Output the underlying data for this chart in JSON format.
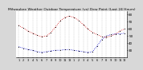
{
  "title": "Milwaukee Weather Outdoor Temperature (vs) Dew Point (Last 24 Hours)",
  "title_fontsize": 3.2,
  "background_color": "#d8d8d8",
  "plot_bg_color": "#ffffff",
  "red_line": [
    65,
    61,
    57,
    54,
    51,
    49,
    50,
    55,
    63,
    71,
    76,
    78,
    76,
    72,
    66,
    60,
    55,
    52,
    49,
    48,
    50,
    53,
    57,
    60
  ],
  "blue_line": [
    35,
    33,
    31,
    30,
    28,
    27,
    28,
    29,
    30,
    30,
    31,
    31,
    30,
    29,
    28,
    27,
    28,
    36,
    45,
    50,
    52,
    53,
    53,
    54
  ],
  "red_color": "#cc0000",
  "blue_color": "#0000cc",
  "ylim": [
    20,
    85
  ],
  "yticks": [
    30,
    40,
    50,
    60,
    70,
    80
  ],
  "ytick_labels": [
    "30",
    "40",
    "50",
    "60",
    "70",
    "80"
  ],
  "ylabel_fontsize": 3.0,
  "xlabel_fontsize": 2.5,
  "n_points": 24,
  "grid_color": "#aaaaaa",
  "line_width": 0.6,
  "marker_size": 0.9,
  "dot_color": "#000000",
  "dot_size": 0.8,
  "x_labels": [
    "1",
    "2",
    "3",
    "4",
    "5",
    "6",
    "7",
    "8",
    "9",
    "10",
    "11",
    "12",
    "1",
    "2",
    "3",
    "4",
    "5",
    "6",
    "7",
    "8",
    "9",
    "10",
    "11",
    "12"
  ]
}
